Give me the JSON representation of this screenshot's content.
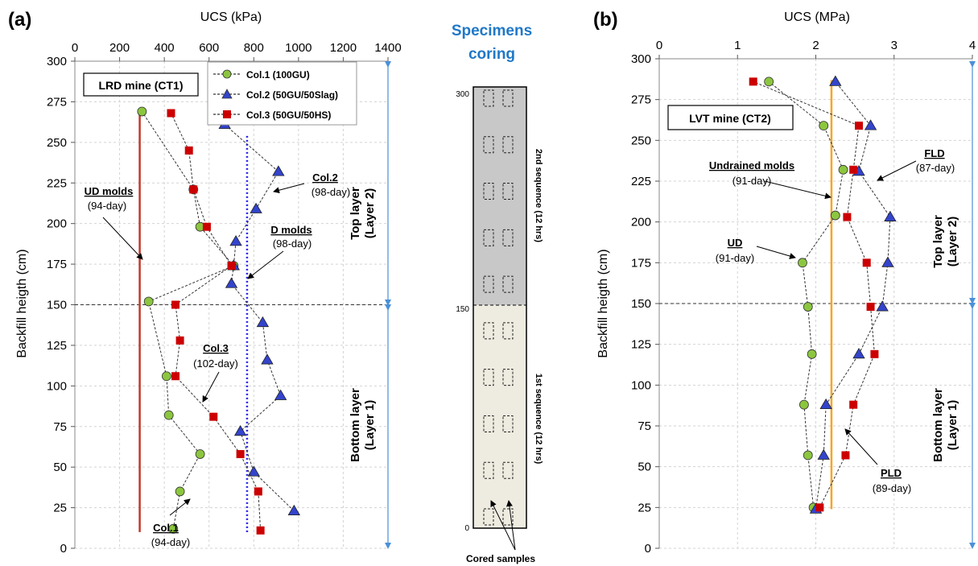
{
  "chart_data": [
    {
      "type": "scatter",
      "panel_label": "(a)",
      "xlabel": "UCS (kPa)",
      "ylabel": "Backfill heigth (cm)",
      "xlim": [
        0,
        1400
      ],
      "ylim": [
        0,
        300
      ],
      "xticks": [
        0,
        200,
        400,
        600,
        800,
        1000,
        1200,
        1400
      ],
      "yticks": [
        0,
        25,
        50,
        75,
        100,
        125,
        150,
        175,
        200,
        225,
        250,
        275,
        300
      ],
      "grid": true,
      "legend_position": "top-right",
      "mine_label": "LRD mine (CT1)",
      "series": [
        {
          "name": "Col.1 (100GU)",
          "marker": "circle",
          "color": "#8cc63f",
          "points": [
            [
              440,
              12
            ],
            [
              470,
              35
            ],
            [
              560,
              58
            ],
            [
              420,
              82
            ],
            [
              410,
              106
            ],
            [
              330,
              152
            ],
            [
              710,
              174
            ],
            [
              560,
              198
            ],
            [
              530,
              221
            ],
            [
              300,
              269
            ]
          ]
        },
        {
          "name": "Col.2 (50GU/50Slag)",
          "marker": "triangle",
          "color": "#3344cc",
          "points": [
            [
              980,
              23
            ],
            [
              800,
              47
            ],
            [
              740,
              72
            ],
            [
              920,
              94
            ],
            [
              860,
              116
            ],
            [
              840,
              139
            ],
            [
              700,
              163
            ],
            [
              710,
              174
            ],
            [
              720,
              189
            ],
            [
              810,
              209
            ],
            [
              910,
              232
            ],
            [
              670,
              261
            ]
          ]
        },
        {
          "name": "Col.3 (50GU/50HS)",
          "marker": "square",
          "color": "#cc0000",
          "points": [
            [
              830,
              11
            ],
            [
              820,
              35
            ],
            [
              740,
              58
            ],
            [
              620,
              81
            ],
            [
              450,
              106
            ],
            [
              470,
              128
            ],
            [
              450,
              150
            ],
            [
              700,
              174
            ],
            [
              590,
              198
            ],
            [
              530,
              221
            ],
            [
              510,
              245
            ],
            [
              430,
              268
            ]
          ]
        }
      ],
      "reference_lines": [
        {
          "name": "UD molds",
          "style": "solid",
          "color": "#c0392b",
          "x": 290,
          "from": 10,
          "to": 270
        },
        {
          "name": "D molds",
          "style": "dotted",
          "color": "#2222ee",
          "x": 770,
          "from": 10,
          "to": 255
        }
      ],
      "layer_split": 150,
      "layer_labels": {
        "top": [
          "Top layer",
          "(Layer 2)"
        ],
        "bottom": [
          "Bottom layer",
          "(Layer 1)"
        ]
      },
      "annotations": [
        {
          "title": "UD molds",
          "subtitle": "(94-day)"
        },
        {
          "title": "D molds",
          "subtitle": "(98-day)"
        },
        {
          "title": "Col.2",
          "subtitle": "(98-day)"
        },
        {
          "title": "Col.3",
          "subtitle": "(102-day)"
        },
        {
          "title": "Col.1",
          "subtitle": "(94-day)"
        }
      ]
    },
    {
      "type": "scatter",
      "panel_label": "(b)",
      "xlabel": "UCS (MPa)",
      "ylabel": "Backfill heigth (cm)",
      "xlim": [
        0,
        4
      ],
      "ylim": [
        0,
        300
      ],
      "xticks": [
        0,
        1,
        2,
        3,
        4
      ],
      "yticks": [
        0,
        25,
        50,
        75,
        100,
        125,
        150,
        175,
        200,
        225,
        250,
        275,
        300
      ],
      "grid": true,
      "mine_label": "LVT mine (CT2)",
      "series": [
        {
          "name": "UD",
          "marker": "circle",
          "color": "#8cc63f",
          "points": [
            [
              1.97,
              25
            ],
            [
              1.9,
              57
            ],
            [
              1.85,
              88
            ],
            [
              1.95,
              119
            ],
            [
              1.9,
              148
            ],
            [
              1.83,
              175
            ],
            [
              2.25,
              204
            ],
            [
              2.35,
              232
            ],
            [
              2.1,
              259
            ],
            [
              1.4,
              286
            ]
          ]
        },
        {
          "name": "FLD",
          "marker": "triangle",
          "color": "#3344cc",
          "points": [
            [
              2.0,
              24
            ],
            [
              2.1,
              57
            ],
            [
              2.13,
              88
            ],
            [
              2.55,
              119
            ],
            [
              2.85,
              148
            ],
            [
              2.92,
              175
            ],
            [
              2.95,
              203
            ],
            [
              2.55,
              231
            ],
            [
              2.7,
              259
            ],
            [
              2.25,
              286
            ]
          ]
        },
        {
          "name": "PLD",
          "marker": "square",
          "color": "#cc0000",
          "points": [
            [
              2.05,
              25
            ],
            [
              2.38,
              57
            ],
            [
              2.48,
              88
            ],
            [
              2.75,
              119
            ],
            [
              2.7,
              148
            ],
            [
              2.65,
              175
            ],
            [
              2.4,
              203
            ],
            [
              2.48,
              232
            ],
            [
              2.55,
              259
            ],
            [
              1.2,
              286
            ]
          ]
        }
      ],
      "reference_lines": [
        {
          "name": "Undrained molds",
          "style": "solid",
          "color": "#f5a623",
          "x": 2.2,
          "from": 24,
          "to": 287
        }
      ],
      "layer_split": 150,
      "layer_labels": {
        "top": [
          "Top layer",
          "(Layer 2)"
        ],
        "bottom": [
          "Bottom layer",
          "(Layer 1)"
        ]
      },
      "annotations": [
        {
          "title": "FLD",
          "subtitle": "(87-day)"
        },
        {
          "title": "Undrained molds",
          "subtitle": "(91-day)"
        },
        {
          "title": "UD",
          "subtitle": "(91-day)"
        },
        {
          "title": "PLD",
          "subtitle": "(89-day)"
        }
      ]
    }
  ],
  "coring": {
    "title_line1": "Specimens",
    "title_line2": "coring",
    "tick_top": "300",
    "tick_mid": "150",
    "tick_bottom": "0",
    "sequence2_label": "2nd sequence (12 hrs)",
    "sequence1_label": "1st sequence (12 hrs)",
    "cored_samples_label": "Cored samples",
    "upper_fill": "#c8c8c8",
    "lower_fill": "#eeebe0",
    "title_color": "#1f78c8",
    "sample_rows": 10
  }
}
